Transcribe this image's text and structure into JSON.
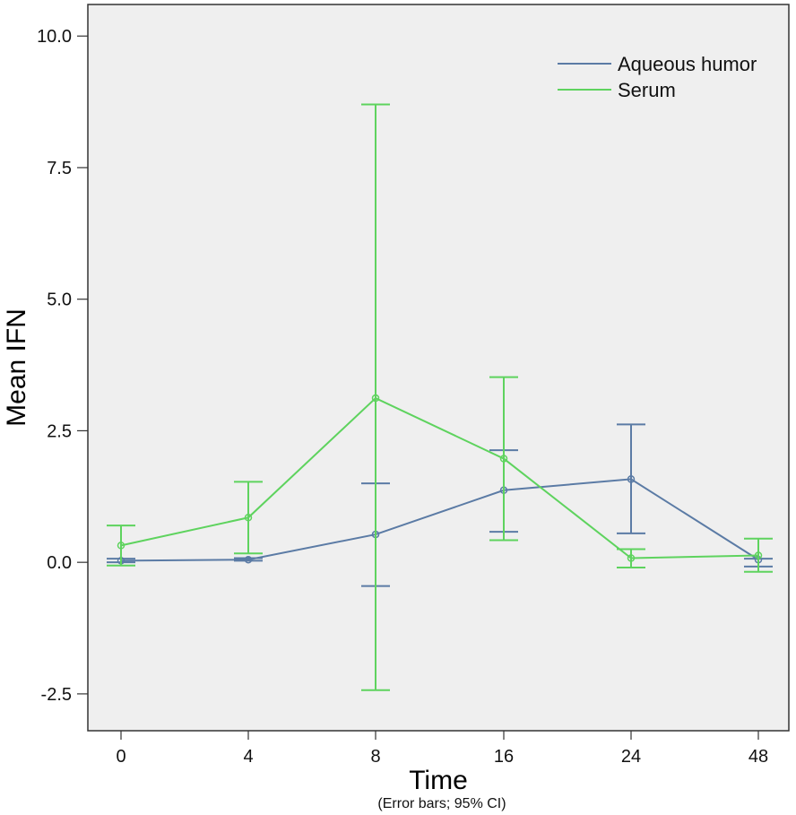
{
  "chart_data": {
    "type": "line",
    "xlabel": "Time",
    "ylabel": "Mean IFN",
    "note": "(Error bars; 95% CI)",
    "categories": [
      "0",
      "4",
      "8",
      "16",
      "24",
      "48"
    ],
    "ylim": [
      -3.2,
      10.6
    ],
    "yticks": [
      -2.5,
      0.0,
      2.5,
      5.0,
      7.5,
      10.0
    ],
    "ytick_labels": [
      "-2.5",
      "0.0",
      "2.5",
      "5.0",
      "7.5",
      "10.0"
    ],
    "grid": false,
    "legend_position": "top-right",
    "background_color": "#efefef",
    "series": [
      {
        "name": "Aqueous humor",
        "color": "#5b7ba5",
        "values": [
          0.03,
          0.05,
          0.53,
          1.37,
          1.58,
          0.05
        ],
        "ci_low": [
          0.0,
          0.03,
          -0.45,
          0.58,
          0.55,
          -0.08
        ],
        "ci_high": [
          0.07,
          0.08,
          1.5,
          2.13,
          2.62,
          0.07
        ]
      },
      {
        "name": "Serum",
        "color": "#5ed35e",
        "values": [
          0.32,
          0.85,
          3.12,
          1.97,
          0.08,
          0.13
        ],
        "ci_low": [
          -0.06,
          0.17,
          -2.43,
          0.42,
          -0.1,
          -0.18
        ],
        "ci_high": [
          0.7,
          1.53,
          8.7,
          3.52,
          0.25,
          0.45
        ]
      }
    ]
  }
}
